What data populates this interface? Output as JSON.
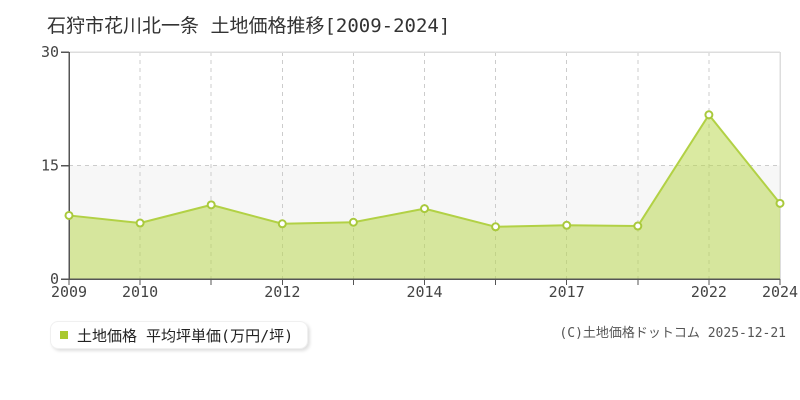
{
  "page": {
    "title": "石狩市花川北一条 土地価格推移[2009-2024]",
    "copyright": "(C)土地価格ドットコム 2025-12-21"
  },
  "legend": {
    "label": "土地価格 平均坪単価(万円/坪)",
    "marker_color": "#a9c92f"
  },
  "chart_data": {
    "type": "area",
    "title": "石狩市花川北一条 土地価格推移[2009-2024]",
    "series_name": "土地価格 平均坪単価(万円/坪)",
    "unit": "万円/坪",
    "xlabel": "",
    "ylabel": "",
    "ylim": [
      0,
      30
    ],
    "yticks": [
      0,
      15,
      30
    ],
    "x_tick_labels": [
      "2009",
      "2010",
      "",
      "2012",
      "",
      "2014",
      "",
      "2017",
      "",
      "2022",
      "2024"
    ],
    "values": [
      8.4,
      7.4,
      9.8,
      7.3,
      7.5,
      9.3,
      6.9,
      7.1,
      7.0,
      21.7,
      10.0
    ],
    "band_range": [
      0,
      15
    ],
    "grid": "dashed",
    "legend_position": "bottom-left",
    "colors": {
      "line": "#b2d145",
      "fill": "#b8d64a",
      "fill_opacity": 0.52,
      "marker_fill": "#ffffff",
      "marker_stroke": "#a9c93c",
      "band": "#f7f7f7",
      "grid": "#cccccc",
      "border": "#dddddd",
      "axis": "#555555",
      "tick_label": "#444444"
    }
  }
}
